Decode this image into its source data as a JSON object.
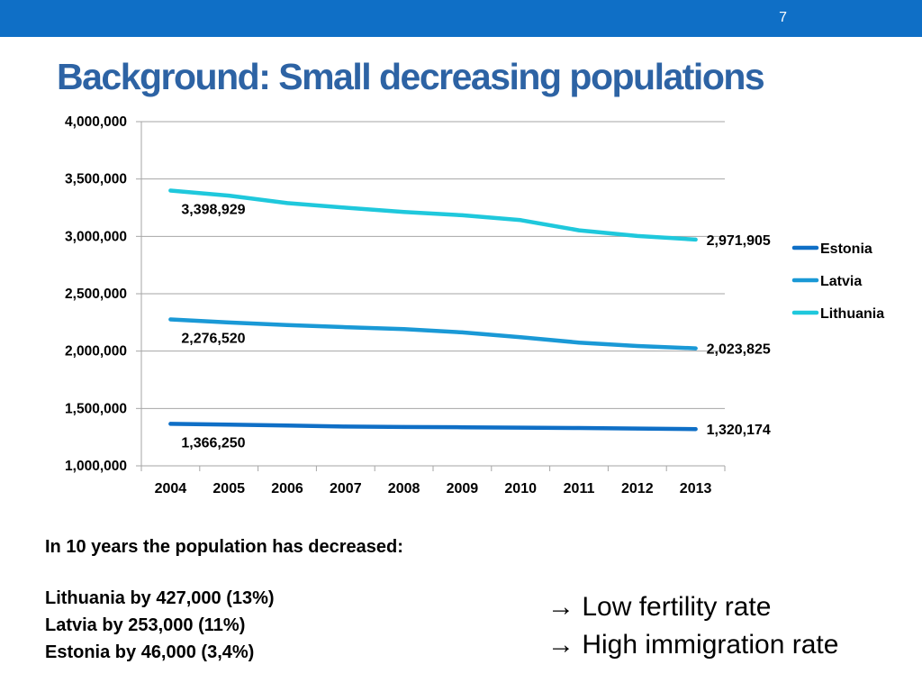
{
  "slide": {
    "page_number": "7",
    "title": "Background: Small decreasing populations"
  },
  "chart_data": {
    "type": "line",
    "title": "",
    "xlabel": "",
    "ylabel": "",
    "categories": [
      "2004",
      "2005",
      "2006",
      "2007",
      "2008",
      "2009",
      "2010",
      "2011",
      "2012",
      "2013"
    ],
    "ylim": [
      1000000,
      4000000
    ],
    "yticks": [
      1000000,
      1500000,
      2000000,
      2500000,
      3000000,
      3500000,
      4000000
    ],
    "ytick_labels": [
      "1,000,000",
      "1,500,000",
      "2,000,000",
      "2,500,000",
      "3,000,000",
      "3,500,000",
      "4,000,000"
    ],
    "grid": true,
    "legend": "right",
    "series": [
      {
        "name": "Estonia",
        "color": "#0f6fc6",
        "values": [
          1366250,
          1358850,
          1350700,
          1342409,
          1338440,
          1335740,
          1333290,
          1329660,
          1325217,
          1320174
        ],
        "start_label": "1,366,250",
        "end_label": "1,320,174"
      },
      {
        "name": "Latvia",
        "color": "#1a99d6",
        "values": [
          2276520,
          2249724,
          2227874,
          2208840,
          2191810,
          2162834,
          2120504,
          2074605,
          2044813,
          2023825
        ],
        "start_label": "2,276,520",
        "end_label": "2,023,825"
      },
      {
        "name": "Lithuania",
        "color": "#1fc8dc",
        "values": [
          3398929,
          3355220,
          3289835,
          3249983,
          3212605,
          3183856,
          3141976,
          3052588,
          3003641,
          2971905
        ],
        "start_label": "3,398,929",
        "end_label": "2,971,905"
      }
    ]
  },
  "summary": {
    "headline": "In 10 years the population has decreased:",
    "lines": [
      "Lithuania by 427,000 (13%)",
      "Latvia by 253,000 (11%)",
      "Estonia by 46,000 (3,4%)"
    ]
  },
  "causes": {
    "arrow_icon": "arrow-right-icon",
    "items": [
      "Low fertility rate",
      "High immigration rate"
    ]
  }
}
